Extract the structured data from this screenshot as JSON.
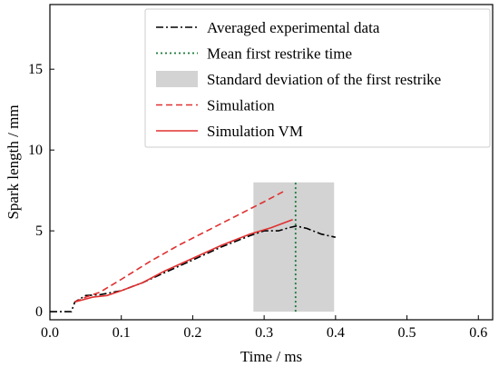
{
  "chart_data": {
    "type": "line",
    "xlabel": "Time / ms",
    "ylabel": "Spark length / mm",
    "xlim": [
      0.0,
      0.62
    ],
    "ylim": [
      -0.5,
      19
    ],
    "xticks": [
      0.0,
      0.1,
      0.2,
      0.3,
      0.4,
      0.5,
      0.6
    ],
    "xtick_labels": [
      "0.0",
      "0.1",
      "0.2",
      "0.3",
      "0.4",
      "0.5",
      "0.6"
    ],
    "yticks": [
      0,
      5,
      10,
      15
    ],
    "ytick_labels": [
      "0",
      "5",
      "10",
      "15"
    ],
    "grid": false,
    "legend_position": "top-right",
    "std_band": {
      "x": [
        0.285,
        0.398
      ],
      "y": [
        0.0,
        8.0
      ],
      "color": "#d3d3d3"
    },
    "mean_restrike_time": {
      "x": 0.344,
      "color": "#1a7a3a"
    },
    "series": [
      {
        "name": "Averaged experimental data",
        "style": "dashdot",
        "color": "#000000",
        "x": [
          0.0,
          0.03,
          0.035,
          0.05,
          0.07,
          0.1,
          0.13,
          0.16,
          0.2,
          0.24,
          0.28,
          0.3,
          0.32,
          0.335,
          0.345,
          0.36,
          0.38,
          0.4
        ],
        "y": [
          0.0,
          0.0,
          0.6,
          1.0,
          1.05,
          1.3,
          1.8,
          2.4,
          3.2,
          4.0,
          4.7,
          5.0,
          5.0,
          5.2,
          5.3,
          5.15,
          4.8,
          4.6
        ]
      },
      {
        "name": "Mean first restrike time",
        "style": "dotted",
        "color": "#1a7a3a",
        "x": [
          0.344,
          0.344
        ],
        "y": [
          0.0,
          8.0
        ]
      },
      {
        "name": "Standard deviation of the first restrike",
        "style": "band",
        "color": "#d3d3d3",
        "x": [
          0.285,
          0.398
        ],
        "y": [
          0.0,
          8.0
        ]
      },
      {
        "name": "Simulation",
        "style": "dashed",
        "color": "#e03030",
        "x": [
          0.035,
          0.05,
          0.07,
          0.1,
          0.14,
          0.18,
          0.22,
          0.26,
          0.3,
          0.33
        ],
        "y": [
          0.6,
          0.9,
          1.2,
          2.0,
          3.1,
          4.1,
          5.0,
          5.9,
          6.8,
          7.5
        ]
      },
      {
        "name": "Simulation VM",
        "style": "solid",
        "color": "#e03030",
        "x": [
          0.035,
          0.06,
          0.08,
          0.1,
          0.13,
          0.16,
          0.2,
          0.24,
          0.28,
          0.31,
          0.34
        ],
        "y": [
          0.6,
          0.9,
          1.0,
          1.3,
          1.8,
          2.5,
          3.3,
          4.1,
          4.8,
          5.2,
          5.7
        ]
      }
    ]
  }
}
